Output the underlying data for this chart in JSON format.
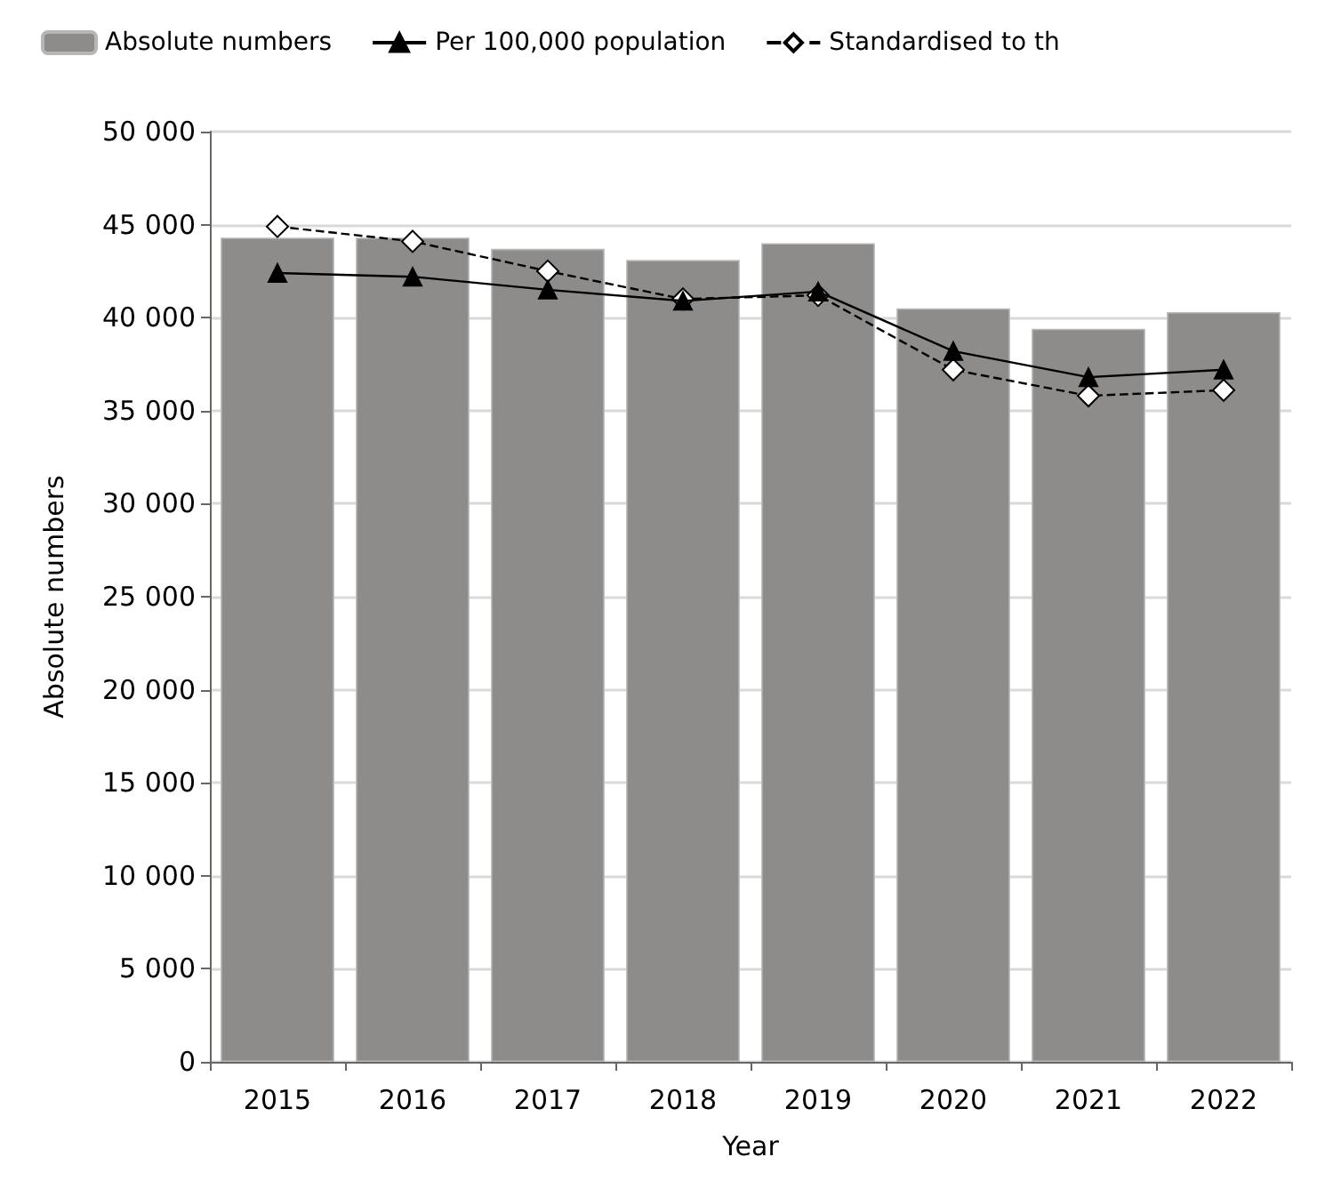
{
  "chart_data": {
    "type": "bar",
    "xlabel": "Year",
    "ylabel": "Absolute numbers",
    "categories": [
      "2015",
      "2016",
      "2017",
      "2018",
      "2019",
      "2020",
      "2021",
      "2022"
    ],
    "series": [
      {
        "name": "Absolute numbers",
        "color": "#8e8c8a",
        "values": [
          44300,
          44300,
          43700,
          43100,
          44000,
          40500,
          39400,
          40300
        ]
      },
      {
        "name": "Per 100,000 population",
        "type": "line",
        "color": "#000000",
        "marker": "triangle",
        "line_style": "solid",
        "values": [
          42400,
          42200,
          41500,
          40900,
          41400,
          38200,
          36800,
          37200
        ]
      },
      {
        "name": "Standardised to th",
        "type": "line",
        "color": "#000000",
        "marker": "diamond",
        "line_style": "dashed",
        "values": [
          44900,
          44100,
          42500,
          41000,
          41200,
          37200,
          35800,
          36100
        ]
      }
    ],
    "ylim": [
      0,
      50000
    ],
    "yticks": [
      0,
      5000,
      10000,
      15000,
      20000,
      25000,
      30000,
      35000,
      40000,
      45000,
      50000
    ],
    "grid": "y",
    "legend": "top left"
  }
}
